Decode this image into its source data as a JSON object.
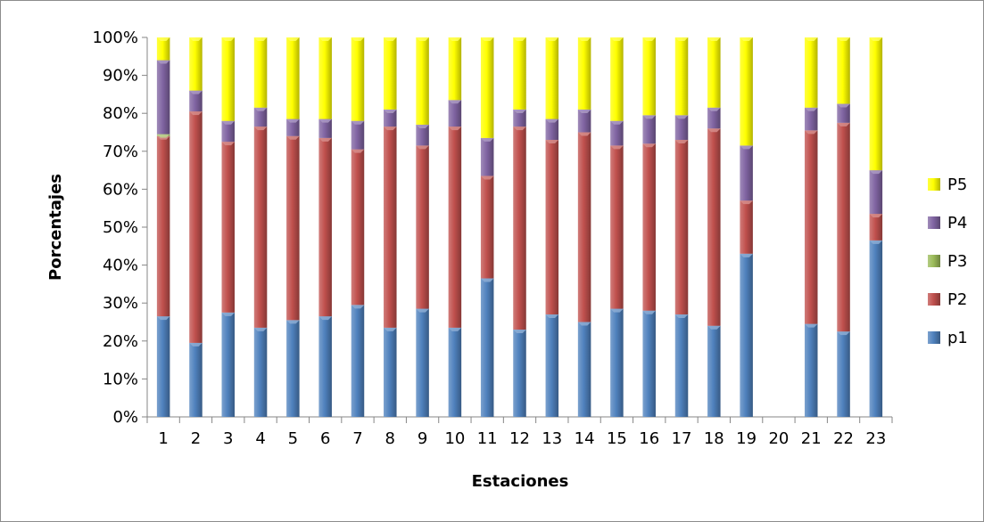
{
  "chart_data": {
    "type": "bar",
    "stacked": true,
    "percent_stacked": true,
    "title": "",
    "xlabel": "Estaciones",
    "ylabel": "Porcentajes",
    "ylim": [
      0,
      100
    ],
    "yticks": [
      "0%",
      "10%",
      "20%",
      "30%",
      "40%",
      "50%",
      "60%",
      "70%",
      "80%",
      "90%",
      "100%"
    ],
    "categories": [
      "1",
      "2",
      "3",
      "4",
      "5",
      "6",
      "7",
      "8",
      "9",
      "10",
      "11",
      "12",
      "13",
      "14",
      "15",
      "16",
      "17",
      "18",
      "19",
      "20",
      "21",
      "22",
      "23"
    ],
    "series": [
      {
        "name": "p1",
        "color": "#4f81bd",
        "values": [
          26.5,
          19.5,
          27.5,
          23.5,
          25.5,
          26.5,
          29.5,
          23.5,
          28.5,
          23.5,
          36.5,
          23,
          27,
          25,
          28.5,
          28,
          27,
          24,
          43,
          0,
          24.5,
          22.5,
          46.5
        ]
      },
      {
        "name": "P2",
        "color": "#c0504d",
        "values": [
          47.5,
          61,
          45,
          53,
          48.5,
          47,
          41,
          53,
          43,
          53,
          27,
          53.5,
          46,
          50,
          43,
          44,
          46,
          52,
          14,
          0,
          51,
          55,
          7
        ]
      },
      {
        "name": "P3",
        "color": "#9bbb59",
        "values": [
          0.5,
          0,
          0,
          0,
          0,
          0,
          0,
          0,
          0,
          0,
          0,
          0,
          0,
          0,
          0,
          0,
          0,
          0,
          0,
          0,
          0,
          0,
          0
        ]
      },
      {
        "name": "P4",
        "color": "#8064a2",
        "values": [
          19.5,
          5.5,
          5.5,
          5,
          4.5,
          5,
          7.5,
          4.5,
          5.5,
          7,
          10,
          4.5,
          5.5,
          6,
          6.5,
          7.5,
          6.5,
          5.5,
          14.5,
          0,
          6,
          5,
          11.5
        ]
      },
      {
        "name": "P5",
        "color": "#ffff00",
        "values": [
          6,
          14,
          22,
          18.5,
          21.5,
          21.5,
          22,
          19,
          23,
          16.5,
          26.5,
          19,
          21.5,
          19,
          22,
          20.5,
          20.5,
          18.5,
          28.5,
          0,
          18.5,
          17.5,
          35
        ]
      }
    ],
    "legend": {
      "position": "right",
      "order": [
        "P5",
        "P4",
        "P3",
        "P2",
        "p1"
      ]
    },
    "grid": false
  }
}
